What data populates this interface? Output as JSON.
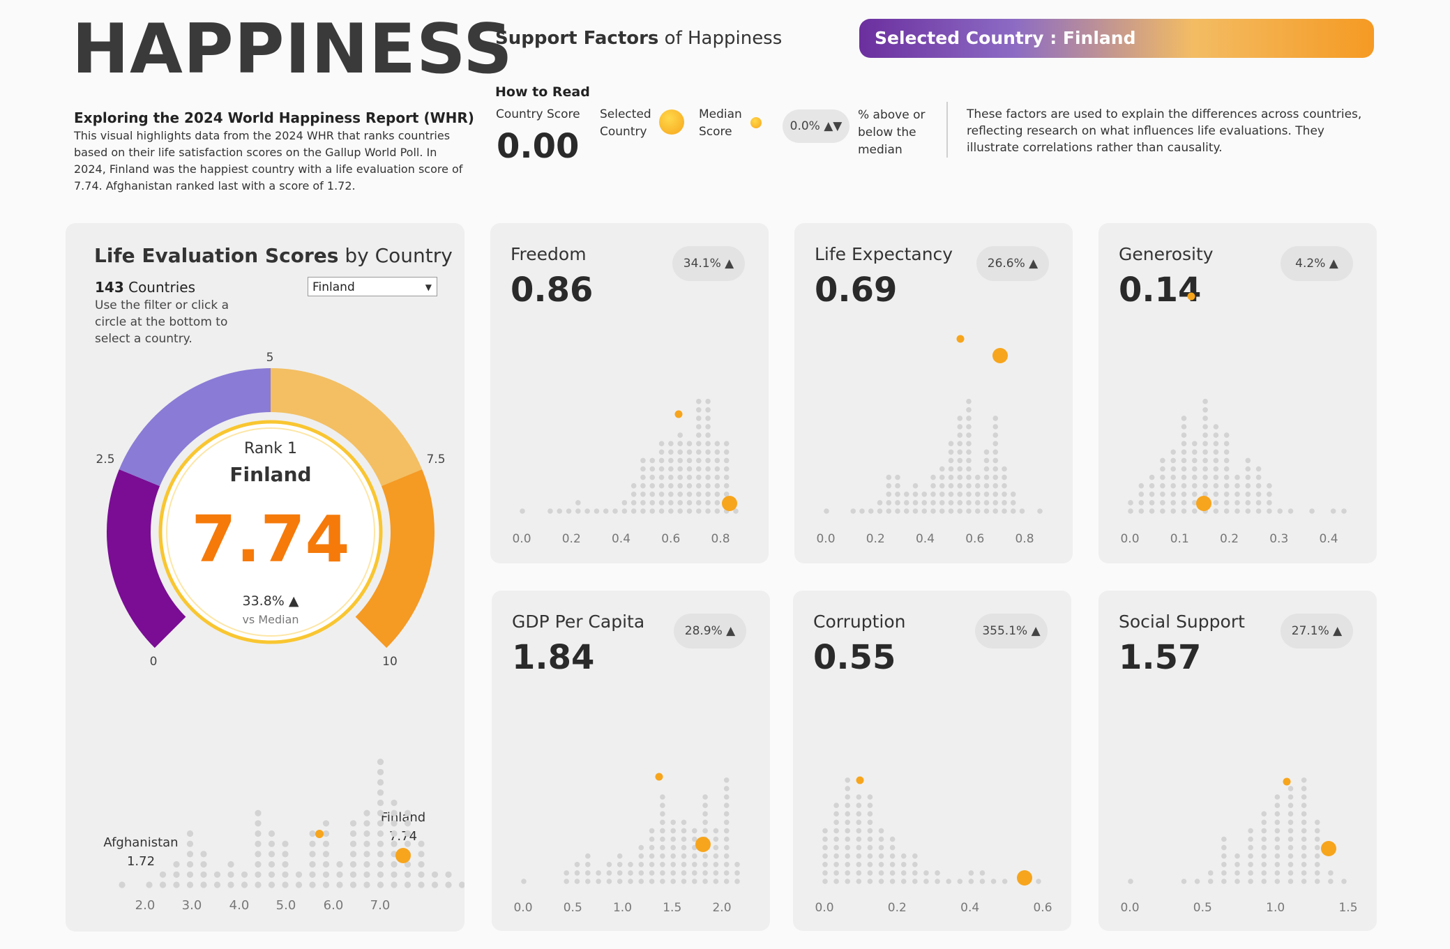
{
  "header": {
    "title": "HAPPINESS",
    "subtitle": "Exploring the 2024 World Happiness Report (WHR)",
    "intro": "This visual highlights data from the 2024 WHR that ranks countries based on their life satisfaction scores on the Gallup World Poll.  In 2024, Finland was the happiest country with a life evaluation score of 7.74. Afghanistan ranked last with a score of 1.72."
  },
  "support": {
    "heading_bold": "Support Factors",
    "heading_rest": " of Happiness",
    "banner": "Selected Country : Finland"
  },
  "how_to_read": {
    "title": "How to Read",
    "score_label": "Country Score",
    "score_value": "0.00",
    "selected_label": "Selected\nCountry",
    "median_label": "Median\nScore",
    "pill": "0.0% ▲▼",
    "pill_desc": "% above or below the median",
    "note": "These factors are used to explain the differences across countries, reflecting research on what influences life evaluations. They illustrate correlations rather than causality."
  },
  "life_eval": {
    "title_bold": "Life Evaluation Scores",
    "title_rest": " by Country",
    "count_bold": "143",
    "count_rest": " Countries",
    "hint": "Use the filter or click a circle at the bottom to select a country.",
    "selected": "Finland",
    "rank": "Rank 1",
    "country": "Finland",
    "score": "7.74",
    "vs_pct": "33.8% ▲",
    "vs_label": "vs Median",
    "gauge_labels": [
      "0",
      "2.5",
      "5",
      "7.5",
      "10"
    ],
    "colors": {
      "c0": "#7a0d94",
      "c1": "#8a7bd6",
      "c2": "#f3bf62",
      "c3": "#f59a23",
      "accent": "#f57a0a"
    },
    "strip_min_label": "Afghanistan",
    "strip_min_value": "1.72",
    "strip_max_label": "Finland",
    "strip_max_value": "7.74",
    "strip_ticks": [
      "2.0",
      "3.0",
      "4.0",
      "5.0",
      "6.0",
      "7.0"
    ],
    "strip_counts": [
      1,
      0,
      1,
      2,
      3,
      6,
      4,
      2,
      3,
      2,
      8,
      6,
      5,
      2,
      6,
      7,
      3,
      7,
      8,
      13,
      9,
      8,
      5,
      2,
      2,
      1,
      1
    ]
  },
  "factors": [
    {
      "name": "Freedom",
      "value": "0.86",
      "pill": "34.1% ▲",
      "ticks": [
        "0.0",
        "0.2",
        "0.4",
        "0.6",
        "0.8"
      ],
      "counts": [
        1,
        0,
        0,
        1,
        1,
        1,
        2,
        1,
        1,
        1,
        1,
        2,
        4,
        7,
        7,
        9,
        9,
        10,
        9,
        14,
        14,
        9,
        9,
        1
      ]
    },
    {
      "name": "Life Expectancy",
      "value": "0.69",
      "pill": "26.6% ▲",
      "ticks": [
        "0.0",
        "0.2",
        "0.4",
        "0.6",
        "0.8"
      ],
      "counts": [
        1,
        0,
        0,
        1,
        1,
        1,
        2,
        5,
        5,
        3,
        4,
        3,
        5,
        6,
        9,
        12,
        14,
        5,
        8,
        12,
        6,
        3,
        1,
        0,
        1
      ]
    },
    {
      "name": "Generosity",
      "value": "0.14",
      "pill": "4.2% ▲",
      "ticks": [
        "0.0",
        "0.1",
        "0.2",
        "0.3",
        "0.4"
      ],
      "counts": [
        2,
        4,
        5,
        7,
        8,
        12,
        9,
        14,
        11,
        10,
        5,
        7,
        6,
        4,
        1,
        1,
        0,
        1,
        0,
        1,
        1
      ]
    },
    {
      "name": "GDP Per Capita",
      "value": "1.84",
      "pill": "28.9% ▲",
      "ticks": [
        "0.0",
        "0.5",
        "1.0",
        "1.5",
        "2.0"
      ],
      "counts": [
        1,
        0,
        0,
        0,
        2,
        3,
        4,
        2,
        3,
        4,
        3,
        5,
        7,
        11,
        8,
        8,
        7,
        11,
        7,
        13,
        3
      ]
    },
    {
      "name": "Corruption",
      "value": "0.55",
      "pill": "355.1% ▲",
      "ticks": [
        "0.0",
        "0.2",
        "0.4",
        "0.6"
      ],
      "counts": [
        7,
        10,
        13,
        11,
        11,
        7,
        6,
        4,
        4,
        2,
        2,
        1,
        1,
        2,
        2,
        1,
        1,
        0,
        1,
        1
      ]
    },
    {
      "name": "Social Support",
      "value": "1.57",
      "pill": "27.1% ▲",
      "ticks": [
        "0.0",
        "0.5",
        "1.0",
        "1.5"
      ],
      "counts": [
        1,
        0,
        0,
        0,
        1,
        1,
        2,
        6,
        4,
        7,
        9,
        11,
        12,
        13,
        8,
        2,
        1
      ]
    }
  ]
}
